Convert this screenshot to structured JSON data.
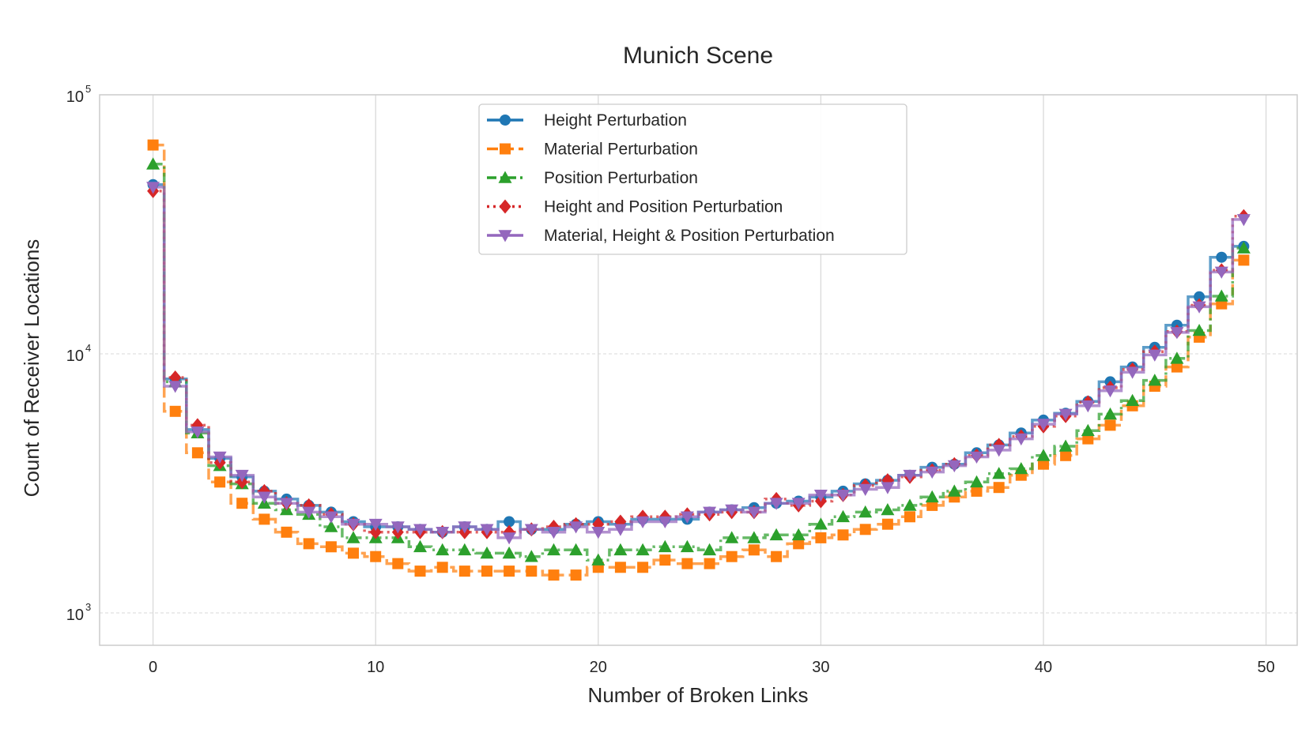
{
  "chart_data": {
    "type": "line",
    "step": "mid",
    "title": "Munich Scene",
    "xlabel": "Number of Broken Links",
    "ylabel": "Count of Receiver Locations",
    "yscale": "log",
    "xlim": [
      -2.4,
      51.4
    ],
    "ylim": [
      750,
      100000
    ],
    "xticks": [
      0,
      10,
      20,
      30,
      40,
      50
    ],
    "xtick_labels": [
      "0",
      "10",
      "20",
      "30",
      "40",
      "50"
    ],
    "yticks": [
      1000,
      10000,
      100000
    ],
    "ytick_labels": [
      {
        "base": "10",
        "exp": "3"
      },
      {
        "base": "10",
        "exp": "4"
      },
      {
        "base": "10",
        "exp": "5"
      }
    ],
    "grid": true,
    "legend_position": "top-center",
    "x": [
      0,
      1,
      2,
      3,
      4,
      5,
      6,
      7,
      8,
      9,
      10,
      11,
      12,
      13,
      14,
      15,
      16,
      17,
      18,
      19,
      20,
      21,
      22,
      23,
      24,
      25,
      26,
      27,
      28,
      29,
      30,
      31,
      32,
      33,
      34,
      35,
      36,
      37,
      38,
      39,
      40,
      41,
      42,
      43,
      44,
      45,
      46,
      47,
      48,
      49
    ],
    "series": [
      {
        "name": "Height Perturbation",
        "color": "#1f77b4",
        "marker": "circle",
        "dash": "solid",
        "values": [
          45000,
          8000,
          5100,
          3950,
          3350,
          2950,
          2750,
          2600,
          2450,
          2250,
          2150,
          2150,
          2100,
          2050,
          2150,
          2100,
          2250,
          2100,
          2100,
          2200,
          2250,
          2200,
          2300,
          2300,
          2300,
          2450,
          2500,
          2550,
          2650,
          2700,
          2800,
          2950,
          3150,
          3250,
          3400,
          3650,
          3750,
          4150,
          4450,
          4950,
          5550,
          5900,
          6550,
          7800,
          8900,
          10600,
          12900,
          16600,
          23600,
          26000
        ]
      },
      {
        "name": "Material Perturbation",
        "color": "#ff7f0e",
        "marker": "square",
        "dash": "dashed",
        "values": [
          64000,
          6000,
          4150,
          3200,
          2650,
          2300,
          2050,
          1850,
          1800,
          1700,
          1650,
          1550,
          1450,
          1500,
          1450,
          1450,
          1450,
          1450,
          1400,
          1400,
          1500,
          1500,
          1500,
          1600,
          1550,
          1550,
          1650,
          1750,
          1650,
          1850,
          1950,
          2000,
          2100,
          2200,
          2350,
          2600,
          2800,
          2950,
          3050,
          3400,
          3750,
          4050,
          4700,
          5300,
          6300,
          7500,
          8900,
          11600,
          15600,
          23000
        ]
      },
      {
        "name": "Position Perturbation",
        "color": "#2ca02c",
        "marker": "triangle-up",
        "dash": "dashdot",
        "values": [
          54000,
          7800,
          4950,
          3700,
          3150,
          2650,
          2500,
          2400,
          2150,
          1950,
          1950,
          1950,
          1800,
          1750,
          1750,
          1700,
          1700,
          1650,
          1750,
          1750,
          1600,
          1750,
          1750,
          1800,
          1800,
          1750,
          1950,
          1950,
          2000,
          2000,
          2200,
          2350,
          2450,
          2500,
          2600,
          2800,
          2950,
          3200,
          3450,
          3600,
          4050,
          4400,
          5050,
          5850,
          6600,
          7900,
          9600,
          12300,
          16700,
          25600
        ]
      },
      {
        "name": "Height and Position Perturbation",
        "color": "#d62728",
        "marker": "diamond",
        "dash": "dotted",
        "values": [
          42500,
          8100,
          5300,
          3800,
          3200,
          2950,
          2650,
          2600,
          2400,
          2200,
          2050,
          2050,
          2050,
          2050,
          2050,
          2050,
          2050,
          2100,
          2150,
          2200,
          2200,
          2250,
          2350,
          2350,
          2400,
          2400,
          2450,
          2450,
          2750,
          2600,
          2700,
          2850,
          3100,
          3250,
          3350,
          3550,
          3750,
          4050,
          4450,
          4800,
          5250,
          5750,
          6500,
          7400,
          8700,
          10200,
          12200,
          15400,
          21000,
          34000
        ]
      },
      {
        "name": "Material, Height & Position Perturbation",
        "color": "#9467bd",
        "marker": "triangle-down",
        "dash": "solid",
        "values": [
          44000,
          7500,
          5000,
          4000,
          3400,
          2800,
          2650,
          2450,
          2350,
          2200,
          2200,
          2150,
          2100,
          2050,
          2150,
          2100,
          1950,
          2100,
          2050,
          2150,
          2050,
          2100,
          2250,
          2250,
          2350,
          2450,
          2500,
          2450,
          2650,
          2650,
          2850,
          2850,
          3000,
          3050,
          3400,
          3500,
          3700,
          4000,
          4250,
          4700,
          5350,
          5850,
          6300,
          7200,
          8500,
          9900,
          12100,
          15200,
          20700,
          33000
        ]
      }
    ]
  }
}
